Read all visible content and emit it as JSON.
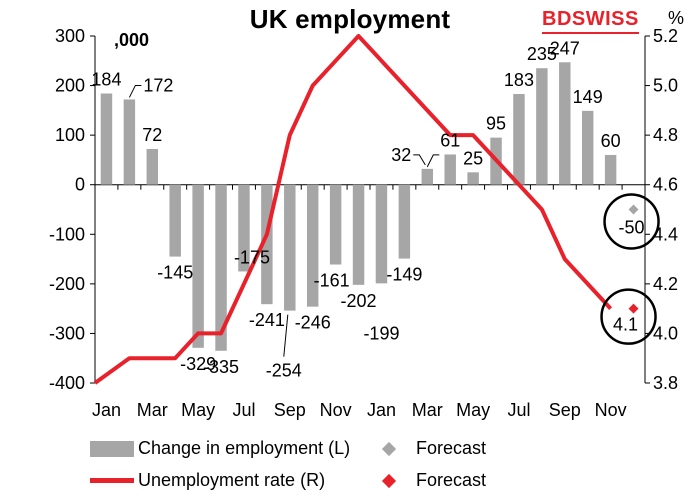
{
  "title": "UK employment",
  "logo_text": "BDSWISS",
  "left_unit": ",000",
  "right_unit": "%",
  "colors": {
    "bar": "#a6a6a6",
    "line": "#e8212b",
    "forecast_bar": "#a6a6a6",
    "forecast_line": "#e8212b"
  },
  "legend": [
    {
      "label": "Change in employment (L)",
      "kind": "bar"
    },
    {
      "label": "Forecast",
      "kind": "diamond-grey"
    },
    {
      "label": "Unemployment rate (R)",
      "kind": "line"
    },
    {
      "label": "Forecast",
      "kind": "diamond-red"
    }
  ],
  "chart_data": {
    "type": "bar",
    "title": "UK employment",
    "xlabel": "",
    "ylabel": ",000",
    "y2label": "%",
    "ylim": [
      -400,
      300
    ],
    "y2lim": [
      3.8,
      5.2
    ],
    "yticks": [
      -400,
      -300,
      -200,
      -100,
      0,
      100,
      200,
      300
    ],
    "y2ticks": [
      "3.8",
      "4.0",
      "4.2",
      "4.4",
      "4.6",
      "4.8",
      "5.0",
      "5.2"
    ],
    "x_tick_labels": [
      "Jan",
      "Mar",
      "May",
      "Jul",
      "Sep",
      "Nov",
      "Jan",
      "Mar",
      "May",
      "Jul",
      "Sep",
      "Nov"
    ],
    "series": [
      {
        "name": "Change in employment (L)",
        "type": "bar",
        "axis": "left",
        "values": [
          184,
          172,
          72,
          -145,
          -329,
          -335,
          -175,
          -241,
          -254,
          -246,
          -161,
          -202,
          -199,
          -149,
          32,
          61,
          25,
          95,
          183,
          235,
          247,
          149,
          60
        ],
        "labels": [
          "184",
          "172",
          "72",
          "-145",
          "-329",
          "-335",
          "-175",
          "-241",
          "-254",
          "-246",
          "-161",
          "-202",
          "-199",
          "-149",
          "32",
          "61",
          "25",
          "95",
          "183",
          "235",
          "247",
          "149",
          "60"
        ]
      },
      {
        "name": "Unemployment rate (R)",
        "type": "line",
        "axis": "right",
        "values": [
          3.8,
          3.9,
          3.9,
          3.9,
          4.0,
          4.0,
          4.2,
          4.4,
          4.8,
          5.0,
          5.1,
          5.2,
          5.1,
          5.0,
          4.9,
          4.8,
          4.8,
          4.7,
          4.6,
          4.5,
          4.3,
          4.2,
          4.1
        ]
      }
    ],
    "forecast": [
      {
        "name": "Forecast",
        "axis": "left",
        "value": -50,
        "label": "-50"
      },
      {
        "name": "Forecast",
        "axis": "right",
        "value": 4.1,
        "label": "4.1"
      }
    ]
  }
}
